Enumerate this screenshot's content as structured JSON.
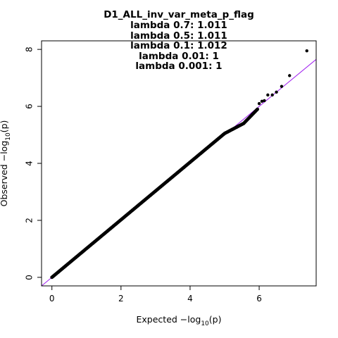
{
  "chart_data": {
    "type": "scatter",
    "title": "D1_ALL_inv_var_meta_p_flag",
    "subtitle_lines": [
      "lambda 0.7: 1.011",
      "lambda 0.5: 1.011",
      "lambda 0.1: 1.012",
      "lambda 0.01: 1",
      "lambda 0.001: 1"
    ],
    "xlabel_prefix": "Expected  −log",
    "ylabel_prefix": "Observed  −log",
    "axis_subscript": "10",
    "axis_suffix": "(p)",
    "xlim": [
      -0.3,
      7.65
    ],
    "ylim": [
      -0.3,
      8.3
    ],
    "x_ticks": [
      0,
      2,
      4,
      6
    ],
    "y_ticks": [
      0,
      2,
      4,
      6,
      8
    ],
    "reference_line": {
      "slope": 1,
      "intercept": 0,
      "color": "#a020f0"
    },
    "point_color": "#000000",
    "dense_segments": [
      {
        "x": [
          0.0,
          5.0
        ],
        "y": [
          0.0,
          5.05
        ]
      },
      {
        "x": [
          5.0,
          5.55
        ],
        "y": [
          5.05,
          5.4
        ]
      },
      {
        "x": [
          5.55,
          5.95
        ],
        "y": [
          5.4,
          5.9
        ]
      }
    ],
    "tail_points": [
      {
        "x": 6.0,
        "y": 6.1
      },
      {
        "x": 6.08,
        "y": 6.18
      },
      {
        "x": 6.15,
        "y": 6.2
      },
      {
        "x": 6.25,
        "y": 6.4
      },
      {
        "x": 6.38,
        "y": 6.4
      },
      {
        "x": 6.5,
        "y": 6.5
      },
      {
        "x": 6.65,
        "y": 6.7
      },
      {
        "x": 6.88,
        "y": 7.08
      },
      {
        "x": 7.38,
        "y": 7.95
      }
    ],
    "grid": false,
    "legend": "none"
  }
}
